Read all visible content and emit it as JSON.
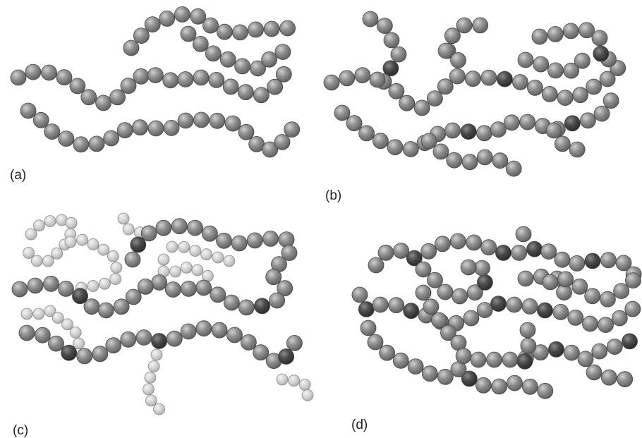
{
  "panels": [
    {
      "label": "(a)",
      "structure": "linear"
    },
    {
      "label": "(b)",
      "structure": "branched"
    },
    {
      "label": "(c)",
      "structure": "grafted"
    },
    {
      "label": "(d)",
      "structure": "cross-linked"
    }
  ],
  "colors": {
    "monomer": "#8c8c8c",
    "branch_point": "#4d4d4d",
    "graft_monomer": "#d2d2d2",
    "label_text": "#222222"
  }
}
